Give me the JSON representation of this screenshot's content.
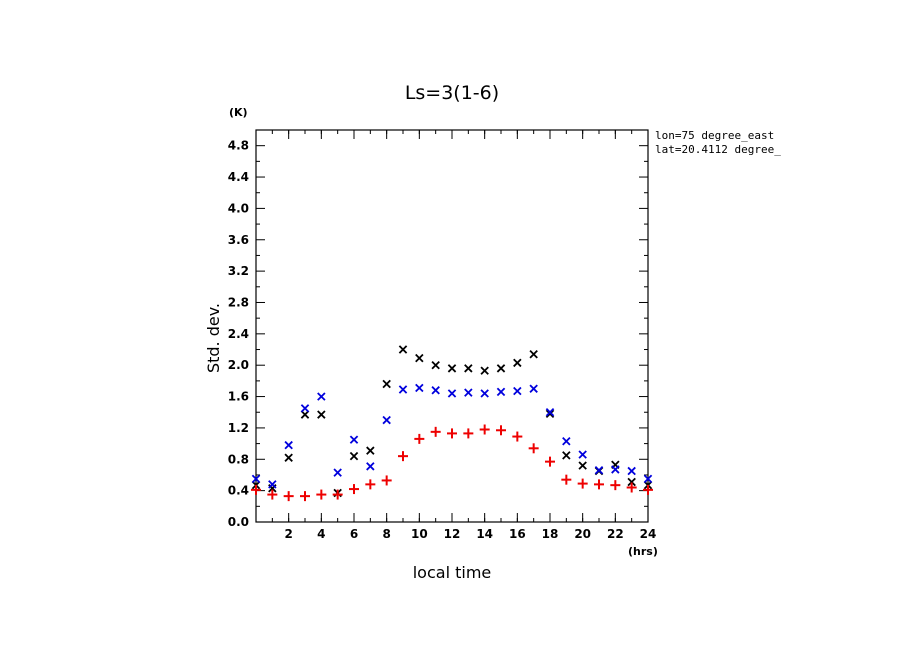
{
  "chart_data": {
    "type": "scatter",
    "title": "Ls=3(1-6)",
    "ylabel": "Std. dev.",
    "yunit": "(K)",
    "xlabel": "local time",
    "xunit": "(hrs)",
    "annotations": [
      "lon=75 degree_east",
      "lat=20.4112 degree_"
    ],
    "xlim": [
      0,
      24
    ],
    "ylim": [
      0,
      5.0
    ],
    "xticks": [
      2,
      4,
      6,
      8,
      10,
      12,
      14,
      16,
      18,
      20,
      22,
      24
    ],
    "yticks": [
      0.0,
      0.4,
      0.8,
      1.2,
      1.6,
      2.0,
      2.4,
      2.8,
      3.2,
      3.6,
      4.0,
      4.4,
      4.8
    ],
    "ytick_labels": [
      "0.0",
      "0.4",
      "0.8",
      "1.2",
      "1.6",
      "2.0",
      "2.4",
      "2.8",
      "3.2",
      "3.6",
      "4.0",
      "4.4",
      "4.8"
    ],
    "series": [
      {
        "marker": "x",
        "color": "#000000",
        "x": [
          0,
          1,
          2,
          3,
          4,
          5,
          6,
          7,
          8,
          9,
          10,
          11,
          12,
          13,
          14,
          15,
          16,
          17,
          18,
          19,
          20,
          21,
          22,
          23,
          24
        ],
        "y": [
          0.47,
          0.43,
          0.82,
          1.37,
          1.37,
          0.37,
          0.84,
          0.91,
          1.76,
          2.2,
          2.09,
          2.0,
          1.96,
          1.96,
          1.93,
          1.96,
          2.03,
          2.14,
          1.38,
          0.85,
          0.72,
          0.65,
          0.73,
          0.51,
          0.47
        ]
      },
      {
        "marker": "x",
        "color": "#0000dd",
        "x": [
          0,
          1,
          2,
          3,
          4,
          5,
          6,
          7,
          8,
          9,
          10,
          11,
          12,
          13,
          14,
          15,
          16,
          17,
          18,
          19,
          20,
          21,
          22,
          23,
          24
        ],
        "y": [
          0.55,
          0.48,
          0.98,
          1.45,
          1.6,
          0.63,
          1.05,
          0.71,
          1.3,
          1.69,
          1.71,
          1.68,
          1.64,
          1.65,
          1.64,
          1.66,
          1.67,
          1.7,
          1.4,
          1.03,
          0.86,
          0.66,
          0.67,
          0.65,
          0.55
        ]
      },
      {
        "marker": "+",
        "color": "#ee0000",
        "x": [
          0,
          1,
          2,
          3,
          4,
          5,
          6,
          7,
          8,
          9,
          10,
          11,
          12,
          13,
          14,
          15,
          16,
          17,
          18,
          19,
          20,
          21,
          22,
          23,
          24
        ],
        "y": [
          0.41,
          0.35,
          0.33,
          0.33,
          0.35,
          0.35,
          0.42,
          0.48,
          0.53,
          0.84,
          1.06,
          1.15,
          1.13,
          1.13,
          1.18,
          1.17,
          1.09,
          0.94,
          0.77,
          0.54,
          0.49,
          0.48,
          0.47,
          0.44,
          0.41
        ]
      }
    ]
  }
}
